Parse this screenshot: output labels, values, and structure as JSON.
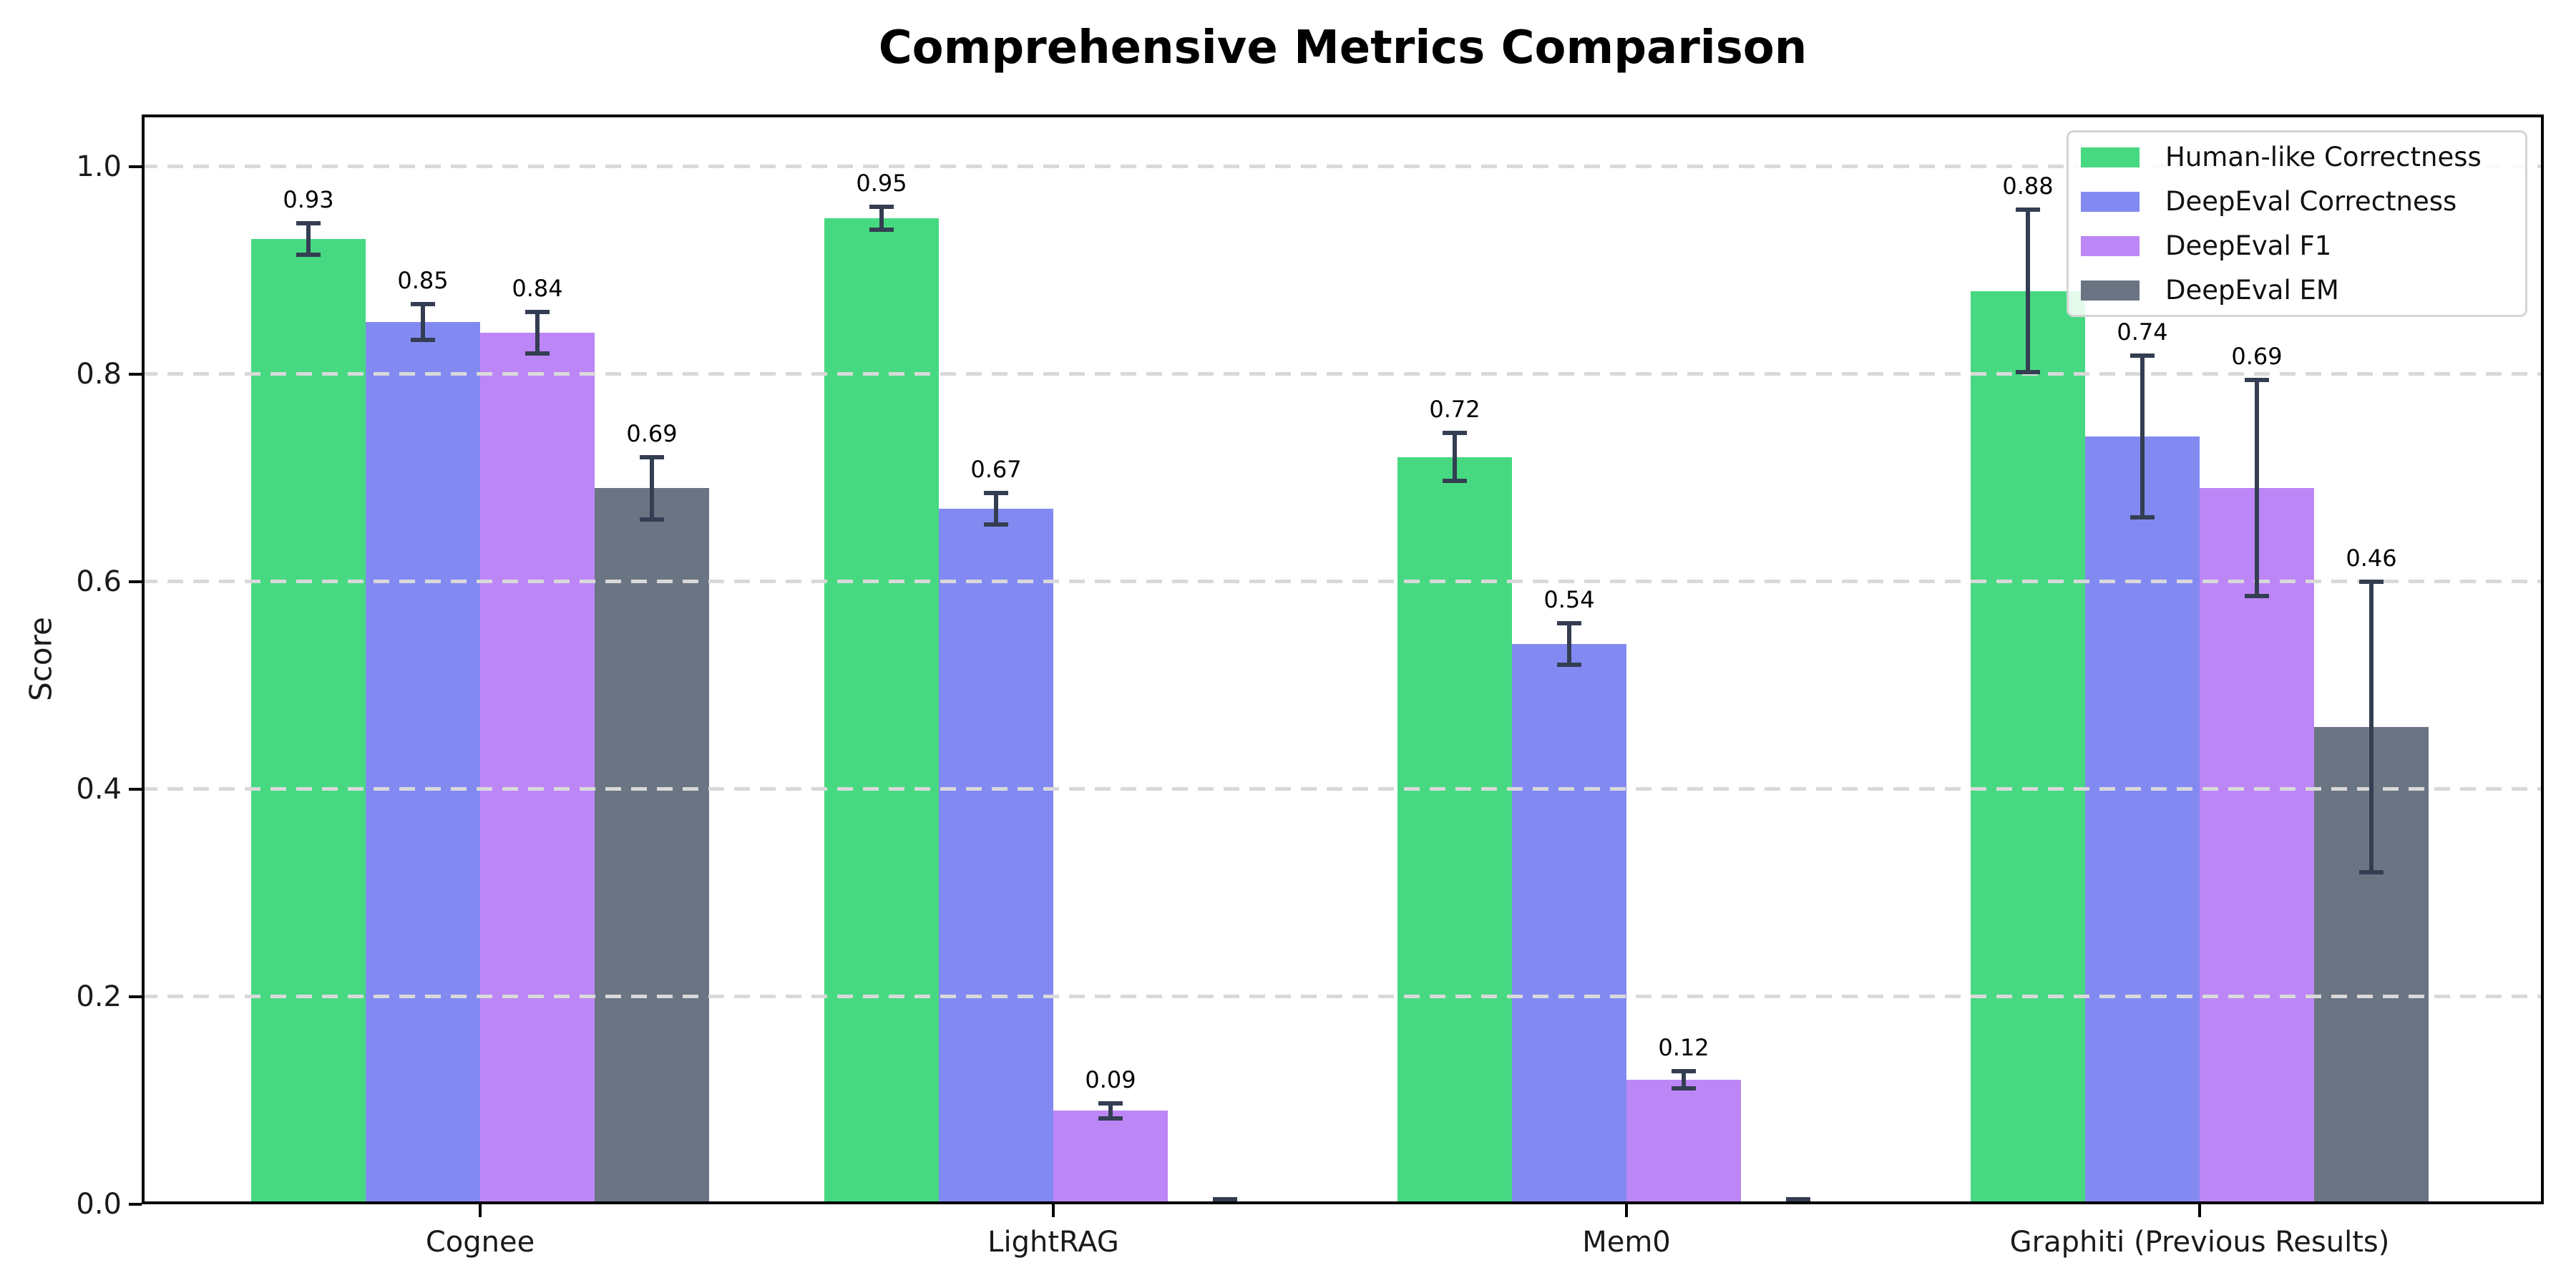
{
  "chart_data": {
    "type": "bar",
    "title": "Comprehensive Metrics Comparison",
    "xlabel": "",
    "ylabel": "Score",
    "categories": [
      "Cognee",
      "LightRAG",
      "Mem0",
      "Graphiti (Previous Results)"
    ],
    "series": [
      {
        "name": "Human-like Correctness",
        "color": "#47d981",
        "values": [
          0.93,
          0.95,
          0.72,
          0.88
        ],
        "errors": [
          0.015,
          0.011,
          0.023,
          0.078
        ],
        "labels": [
          "0.93",
          "0.95",
          "0.72",
          "0.88"
        ]
      },
      {
        "name": "DeepEval Correctness",
        "color": "#828af2",
        "values": [
          0.85,
          0.67,
          0.54,
          0.74
        ],
        "errors": [
          0.017,
          0.015,
          0.02,
          0.078
        ],
        "labels": [
          "0.85",
          "0.67",
          "0.54",
          "0.74"
        ]
      },
      {
        "name": "DeepEval F1",
        "color": "#bd86f6",
        "values": [
          0.84,
          0.09,
          0.12,
          0.69
        ],
        "errors": [
          0.02,
          0.007,
          0.008,
          0.104
        ],
        "labels": [
          "0.84",
          "0.09",
          "0.12",
          "0.69"
        ]
      },
      {
        "name": "DeepEval EM",
        "color": "#6b7483",
        "values": [
          0.69,
          0.0,
          0.0,
          0.46
        ],
        "errors": [
          0.03,
          0.005,
          0.005,
          0.14
        ],
        "labels": [
          "0.69",
          "",
          "",
          "0.46"
        ]
      }
    ],
    "ylim": [
      0,
      1.05
    ],
    "yticks": [
      "0.0",
      "0.2",
      "0.4",
      "0.6",
      "0.8",
      "1.0"
    ],
    "grid": "horizontal-dashed-above-bars",
    "legend_position": "upper-right",
    "colors": {
      "error_bar": "#343e52",
      "gridline": "#d9d9d9",
      "spine": "#000000",
      "background": "#ffffff",
      "text": "#000000"
    }
  }
}
